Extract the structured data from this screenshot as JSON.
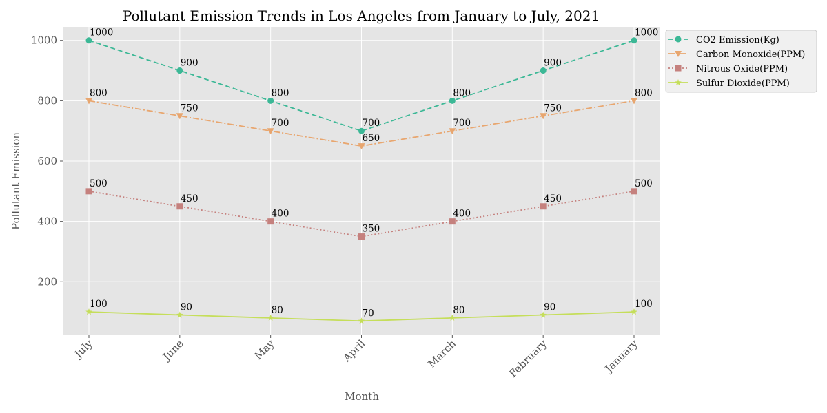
{
  "chart_data": {
    "type": "line",
    "title": "Pollutant Emission Trends in Los Angeles from January to July, 2021",
    "xlabel": "Month",
    "ylabel": "Pollutant Emission",
    "categories": [
      "July",
      "June",
      "May",
      "April",
      "March",
      "February",
      "January"
    ],
    "y_ticks": [
      "200",
      "400",
      "600",
      "800",
      "1000"
    ],
    "ylim": [
      25,
      1045
    ],
    "grid": true,
    "legend_position": "outside-top-right",
    "series": [
      {
        "name": "CO2 Emission(Kg)",
        "values": [
          1000,
          900,
          800,
          700,
          800,
          900,
          1000
        ],
        "labels": [
          "1000",
          "900",
          "800",
          "700",
          "800",
          "900",
          "1000"
        ],
        "color": "#3cb896",
        "line_style": "dashed",
        "marker": "circle"
      },
      {
        "name": "Carbon Monoxide(PPM)",
        "values": [
          800,
          750,
          700,
          650,
          700,
          750,
          800
        ],
        "labels": [
          "800",
          "750",
          "700",
          "650",
          "700",
          "750",
          "800"
        ],
        "color": "#e8a66f",
        "line_style": "dashdot",
        "marker": "triangle-down"
      },
      {
        "name": "Nitrous Oxide(PPM)",
        "values": [
          500,
          450,
          400,
          350,
          400,
          450,
          500
        ],
        "labels": [
          "500",
          "450",
          "400",
          "350",
          "400",
          "450",
          "500"
        ],
        "color": "#c5817e",
        "line_style": "dotted",
        "marker": "square"
      },
      {
        "name": "Sulfur Dioxide(PPM)",
        "values": [
          100,
          90,
          80,
          70,
          80,
          90,
          100
        ],
        "labels": [
          "100",
          "90",
          "80",
          "70",
          "80",
          "90",
          "100"
        ],
        "color": "#c5de5a",
        "line_style": "solid",
        "marker": "star"
      }
    ]
  }
}
